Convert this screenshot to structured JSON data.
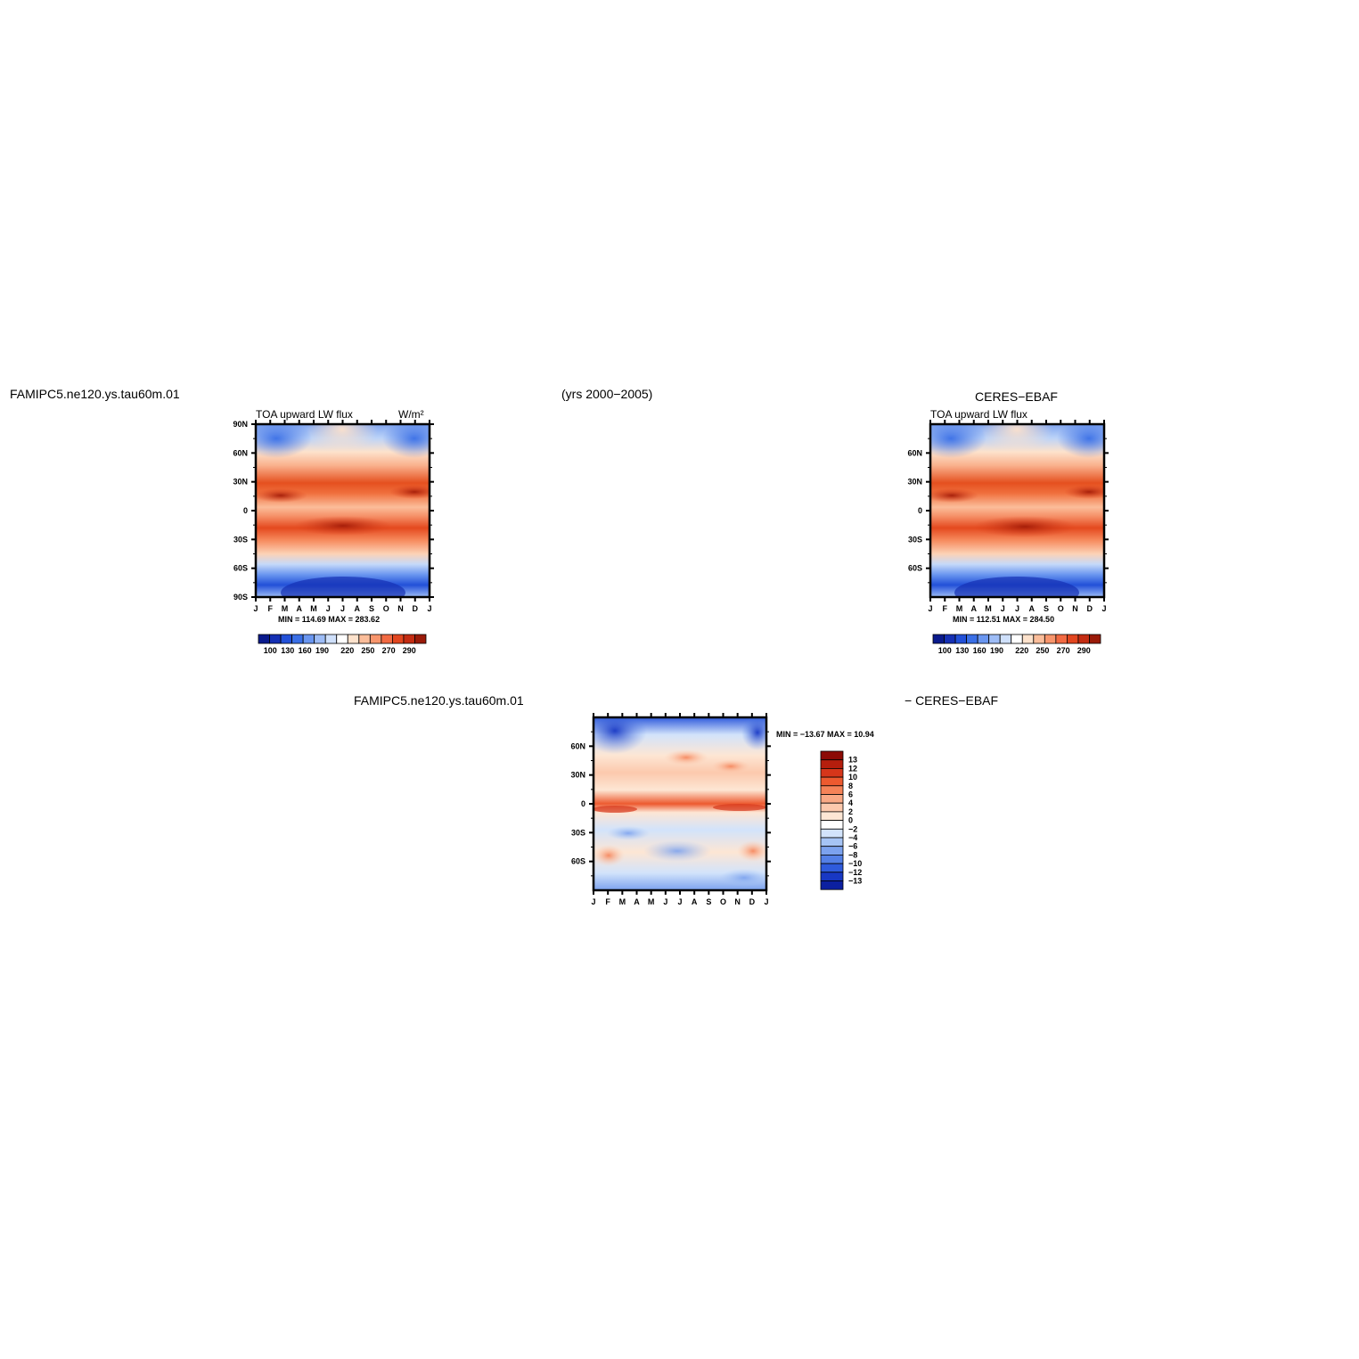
{
  "titles": {
    "case_name_top": "FAMIPC5.ne120.ys.tau60m.01",
    "years": "(yrs 2000−2005)",
    "obs_name": "CERES−EBAF",
    "case_name_diff": "FAMIPC5.ne120.ys.tau60m.01",
    "diff_suffix": "− CERES−EBAF"
  },
  "chart_data": [
    {
      "type": "heatmap",
      "panel": "model",
      "title": "TOA upward LW flux",
      "units": "W/m²",
      "x_tick_labels": [
        "J",
        "F",
        "M",
        "A",
        "M",
        "J",
        "J",
        "A",
        "S",
        "O",
        "N",
        "D",
        "J"
      ],
      "y_tick_labels": [
        "90N",
        "60N",
        "30N",
        "0",
        "30S",
        "60S",
        "90S"
      ],
      "stats": "MIN = 114.69  MAX = 283.62",
      "min": 114.69,
      "max": 283.62,
      "colorbar_labels": [
        "100",
        "130",
        "160",
        "190",
        "220",
        "250",
        "270",
        "290"
      ],
      "colorbar_colors": [
        "#0a1a8c",
        "#1530b4",
        "#2250d8",
        "#3a6fe6",
        "#6a96f0",
        "#9dbcf6",
        "#cfe0fb",
        "#ffffff",
        "#fde2cc",
        "#fbbd9a",
        "#f8956c",
        "#f26a42",
        "#e2461f",
        "#c42c12",
        "#9a1a08"
      ]
    },
    {
      "type": "heatmap",
      "panel": "observations",
      "title": "TOA upward LW flux",
      "x_tick_labels": [
        "J",
        "F",
        "M",
        "A",
        "M",
        "J",
        "J",
        "A",
        "S",
        "O",
        "N",
        "D",
        "J"
      ],
      "y_tick_labels": [
        "60N",
        "30N",
        "0",
        "30S",
        "60S"
      ],
      "stats": "MIN = 112.51  MAX = 284.50",
      "min": 112.51,
      "max": 284.5,
      "colorbar_labels": [
        "100",
        "130",
        "160",
        "190",
        "220",
        "250",
        "270",
        "290"
      ]
    },
    {
      "type": "heatmap",
      "panel": "difference",
      "x_tick_labels": [
        "J",
        "F",
        "M",
        "A",
        "M",
        "J",
        "J",
        "A",
        "S",
        "O",
        "N",
        "D",
        "J"
      ],
      "y_tick_labels": [
        "60N",
        "30N",
        "0",
        "30S",
        "60S"
      ],
      "stats": "MIN = −13.67  MAX =   10.94",
      "min": -13.67,
      "max": 10.94,
      "colorbar_labels": [
        "13",
        "12",
        "10",
        "8",
        "6",
        "4",
        "2",
        "0",
        "−2",
        "−4",
        "−6",
        "−8",
        "−10",
        "−12",
        "−13"
      ],
      "colorbar_colors": [
        "#8c0a05",
        "#b51e0d",
        "#d6361a",
        "#ed5a2f",
        "#f58358",
        "#f9a985",
        "#fcc9ad",
        "#fde6d4",
        "#ffffff",
        "#d2e3fb",
        "#a6c4f5",
        "#7ca2ee",
        "#5480e6",
        "#2f5bdc",
        "#1838c4",
        "#0c20a0"
      ]
    }
  ]
}
